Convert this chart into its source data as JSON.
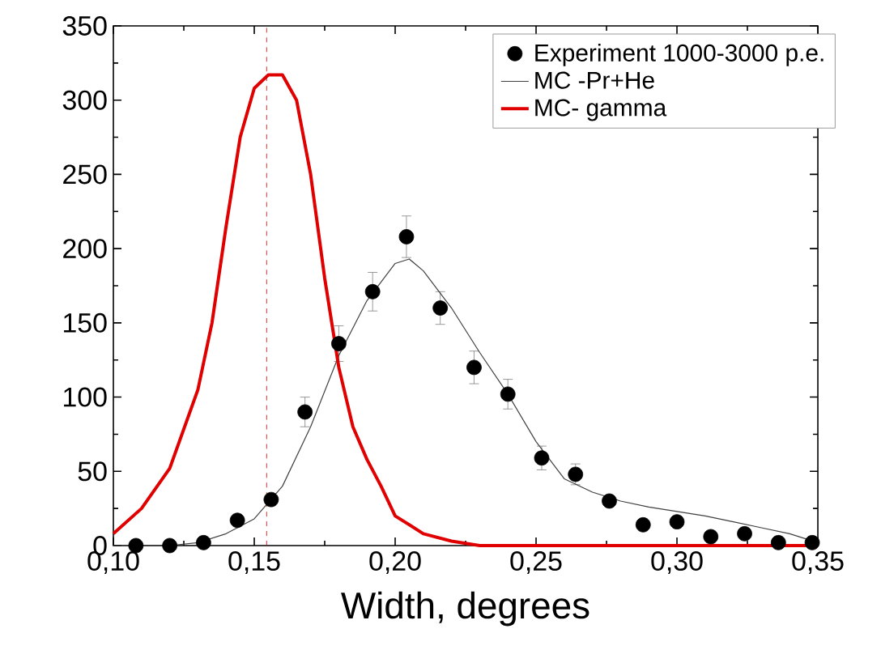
{
  "chart_data": {
    "type": "scatter",
    "xlabel": "Width, degrees",
    "xlim": [
      0.1,
      0.35
    ],
    "ylim": [
      0,
      350
    ],
    "xticks": [
      {
        "value": 0.1,
        "label": "0,10"
      },
      {
        "value": 0.15,
        "label": "0,15"
      },
      {
        "value": 0.2,
        "label": "0,20"
      },
      {
        "value": 0.25,
        "label": "0,25"
      },
      {
        "value": 0.3,
        "label": "0,30"
      },
      {
        "value": 0.35,
        "label": "0,35"
      }
    ],
    "yticks": [
      0,
      50,
      100,
      150,
      200,
      250,
      300,
      350
    ],
    "legend": "top right",
    "series": [
      {
        "name": "Experiment  1000-3000 p.e.",
        "type": "scatter",
        "marker": "circle",
        "color": "#000000",
        "x": [
          0.108,
          0.12,
          0.132,
          0.144,
          0.156,
          0.168,
          0.18,
          0.192,
          0.204,
          0.216,
          0.228,
          0.24,
          0.252,
          0.264,
          0.276,
          0.288,
          0.3,
          0.312,
          0.324,
          0.336,
          0.348
        ],
        "values": [
          0,
          0,
          2,
          17,
          31,
          90,
          136,
          171,
          208,
          160,
          120,
          102,
          59,
          48,
          30,
          14,
          16,
          6,
          8,
          2,
          2
        ],
        "errors": [
          null,
          null,
          null,
          null,
          null,
          10,
          12,
          13,
          14,
          11,
          11,
          10,
          8,
          7,
          null,
          null,
          null,
          null,
          null,
          null,
          null
        ]
      },
      {
        "name": "MC -Pr+He",
        "type": "line",
        "marker": "none",
        "color": "#404040",
        "x": [
          0.1,
          0.12,
          0.13,
          0.14,
          0.15,
          0.16,
          0.17,
          0.18,
          0.19,
          0.2,
          0.205,
          0.21,
          0.22,
          0.23,
          0.24,
          0.25,
          0.26,
          0.27,
          0.28,
          0.29,
          0.3,
          0.31,
          0.32,
          0.33,
          0.34,
          0.35
        ],
        "values": [
          0,
          0,
          2,
          8,
          18,
          40,
          80,
          128,
          165,
          190,
          193,
          185,
          160,
          130,
          102,
          70,
          45,
          36,
          30,
          26,
          23,
          20,
          16,
          12,
          8,
          2
        ]
      },
      {
        "name": "MC- gamma",
        "type": "line",
        "marker": "none",
        "color": "#e00000",
        "x": [
          0.1,
          0.11,
          0.12,
          0.13,
          0.135,
          0.14,
          0.145,
          0.15,
          0.155,
          0.16,
          0.165,
          0.17,
          0.175,
          0.18,
          0.185,
          0.19,
          0.195,
          0.2,
          0.21,
          0.22,
          0.23,
          0.35
        ],
        "values": [
          8,
          25,
          52,
          105,
          150,
          215,
          275,
          308,
          317,
          317,
          300,
          250,
          180,
          120,
          80,
          58,
          40,
          20,
          8,
          3,
          0,
          0
        ]
      }
    ],
    "ref_lines": [
      {
        "axis": "x",
        "value": 0.1544,
        "color": "#c00000",
        "line_style": "dashed"
      }
    ]
  }
}
